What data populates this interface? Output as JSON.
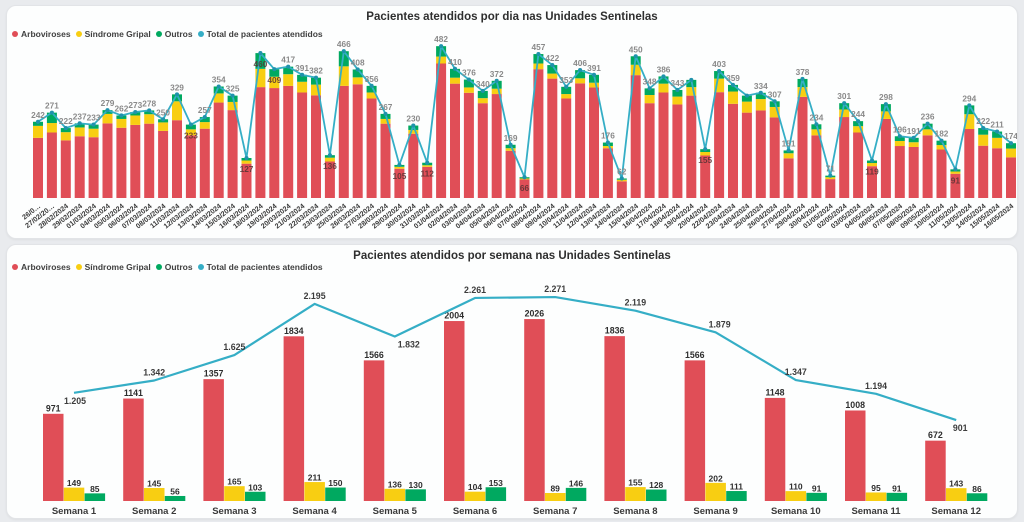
{
  "page": {
    "background": "#e9ebee",
    "card_background": "#fdfefe",
    "card_border": "#e2e4e7"
  },
  "colors": {
    "arboviroses": "#e04e57",
    "sindrome_gripal": "#f8ce12",
    "outros": "#00a960",
    "total_line": "#35aec6",
    "line_dot": "#1f93ac",
    "label_gray": "#8a8a8a",
    "label_inside_dark": "#553333",
    "label_black": "#2e2e2e",
    "axis_text": "#3a3a3a",
    "title_text": "#2f2f2f",
    "legend_text": "#404040"
  },
  "daily_chart": {
    "title": "Pacientes atendidos por dia nas Unidades Sentinelas",
    "legend": [
      {
        "label": "Arboviroses",
        "color": "#e04e57"
      },
      {
        "label": "Síndrome Gripal",
        "color": "#f8ce12"
      },
      {
        "label": "Outros",
        "color": "#00a960"
      },
      {
        "label": "Total de pacientes atendidos",
        "color": "#35aec6"
      }
    ]
  },
  "weekly_chart": {
    "title": "Pacientes atendidos por semana nas Unidades Sentinelas",
    "legend": [
      {
        "label": "Arboviroses",
        "color": "#e04e57"
      },
      {
        "label": "Síndrome Gripal",
        "color": "#f8ce12"
      },
      {
        "label": "Outros",
        "color": "#00a960"
      },
      {
        "label": "Total de pacientes atendidos",
        "color": "#35aec6"
      }
    ]
  },
  "chart_data": [
    {
      "id": "daily",
      "type": "bar",
      "subtype": "stacked-columns-with-line",
      "title": "Pacientes atendidos por dia nas Unidades Sentinelas",
      "categories": [
        "26/02/2024",
        "27/02/2024",
        "28/02/2024",
        "29/02/2024",
        "01/03/2024",
        "04/03/2024",
        "05/03/2024",
        "06/03/2024",
        "07/03/2024",
        "08/03/2024",
        "11/03/2024",
        "12/03/2024",
        "13/03/2024",
        "14/03/2024",
        "15/03/2024",
        "16/03/2024",
        "18/03/2024",
        "19/03/2024",
        "20/03/2024",
        "21/03/2024",
        "22/03/2024",
        "23/03/2024",
        "25/03/2024",
        "26/03/2024",
        "27/03/2024",
        "28/03/2024",
        "29/03/2024",
        "30/03/2024",
        "31/03/2024",
        "01/04/2024",
        "02/04/2024",
        "03/04/2024",
        "04/04/2024",
        "05/04/2024",
        "06/04/2024",
        "07/04/2024",
        "08/04/2024",
        "09/04/2024",
        "10/04/2024",
        "11/04/2024",
        "12/04/2024",
        "13/04/2024",
        "14/04/2024",
        "15/04/2024",
        "16/04/2024",
        "17/04/2024",
        "18/04/2024",
        "19/04/2024",
        "20/04/2024",
        "22/04/2024",
        "23/04/2024",
        "24/04/2024",
        "25/04/2024",
        "26/04/2024",
        "27/04/2024",
        "29/04/2024",
        "30/04/2024",
        "01/05/2024",
        "02/05/2024",
        "03/05/2024",
        "04/05/2024",
        "06/05/2024",
        "07/05/2024",
        "08/05/2024",
        "09/05/2024",
        "10/05/2024",
        "11/05/2024",
        "13/05/2024",
        "14/05/2024",
        "15/05/2024",
        "16/05/2024"
      ],
      "tick_labels_displayed": [
        "26/0…",
        "27/02/20…",
        "28/02/2024",
        "29/02/2024",
        "01/03/2024",
        "04/03/2024",
        "05/03/2024",
        "06/03/2024",
        "07/03/2024",
        "08/03/2024",
        "11/03/2024",
        "12/03/2024",
        "13/03/2024",
        "14/03/2024",
        "15/03/2024",
        "16/03/2024",
        "18/03/2024",
        "19/03/2024",
        "20/03/2024",
        "21/03/2024",
        "22/03/2024",
        "23/03/2024",
        "25/03/2024",
        "26/03/2024",
        "27/03/2024",
        "28/03/2024",
        "29/03/2024",
        "30/03/2024",
        "31/03/2024",
        "01/04/2024",
        "02/04/2024",
        "03/04/2024",
        "04/04/2024",
        "05/04/2024",
        "06/04/2024",
        "07/04/2024",
        "08/04/2024",
        "09/04/2024",
        "10/04/2024",
        "11/04/2024",
        "12/04/2024",
        "13/04/2024",
        "14/04/2024",
        "15/04/2024",
        "16/04/2024",
        "17/04/2024",
        "18/04/2024",
        "19/04/2024",
        "20/04/2024",
        "22/04/2024",
        "23/04/2024",
        "24/04/2024",
        "25/04/2024",
        "26/04/2024",
        "27/04/2024",
        "29/04/2024",
        "30/04/2024",
        "01/05/2024",
        "02/05/2024",
        "03/05/2024",
        "04/05/2024",
        "06/05/2024",
        "07/05/2024",
        "08/05/2024",
        "09/05/2024",
        "10/05/2024",
        "11/05/2024",
        "13/05/2024",
        "14/05/2024",
        "15/05/2024",
        "16/05/2024"
      ],
      "series": [
        {
          "name": "Arboviroses",
          "type": "bar",
          "color": "#e04e57",
          "values": [
            191,
            208,
            183,
            196,
            193,
            237,
            223,
            232,
            236,
            213,
            247,
            199,
            220,
            303,
            279,
            109,
            352,
            349,
            356,
            335,
            326,
            116,
            356,
            361,
            316,
            236,
            93,
            204,
            99,
            427,
            363,
            334,
            301,
            330,
            150,
            59,
            409,
            379,
            316,
            364,
            351,
            158,
            53,
            390,
            301,
            335,
            297,
            325,
            135,
            336,
            299,
            271,
            278,
            256,
            126,
            321,
            199,
            60,
            257,
            208,
            101,
            251,
            165,
            162,
            199,
            154,
            77,
            219,
            166,
            158,
            129
          ]
        },
        {
          "name": "Síndrome Gripal",
          "type": "bar",
          "color": "#f8ce12",
          "values": [
            38,
            30,
            26,
            28,
            27,
            30,
            28,
            30,
            30,
            27,
            60,
            19,
            21,
            29,
            26,
            10,
            58,
            36,
            37,
            34,
            34,
            12,
            62,
            22,
            19,
            15,
            6,
            12,
            5,
            22,
            19,
            17,
            16,
            17,
            8,
            3,
            18,
            16,
            14,
            16,
            15,
            7,
            5,
            33,
            26,
            28,
            25,
            27,
            11,
            43,
            39,
            35,
            36,
            33,
            16,
            31,
            19,
            6,
            24,
            20,
            10,
            24,
            16,
            15,
            19,
            14,
            7,
            47,
            35,
            33,
            28
          ]
        },
        {
          "name": "Outros",
          "type": "bar",
          "color": "#00a960",
          "values": [
            13,
            33,
            13,
            13,
            13,
            12,
            11,
            11,
            12,
            10,
            22,
            15,
            16,
            22,
            20,
            8,
            50,
            24,
            24,
            22,
            22,
            8,
            48,
            25,
            21,
            16,
            6,
            14,
            8,
            33,
            28,
            25,
            23,
            25,
            11,
            4,
            30,
            27,
            23,
            26,
            25,
            11,
            4,
            27,
            21,
            23,
            21,
            23,
            9,
            24,
            21,
            19,
            20,
            18,
            9,
            26,
            16,
            5,
            20,
            16,
            8,
            23,
            15,
            14,
            18,
            14,
            7,
            28,
            21,
            20,
            17
          ]
        },
        {
          "name": "Total de pacientes atendidos",
          "type": "line",
          "color": "#35aec6",
          "values": [
            242,
            271,
            222,
            237,
            233,
            279,
            262,
            273,
            278,
            250,
            329,
            233,
            257,
            354,
            325,
            127,
            460,
            409,
            417,
            391,
            382,
            136,
            466,
            408,
            356,
            267,
            105,
            230,
            112,
            482,
            410,
            376,
            340,
            372,
            169,
            66,
            457,
            422,
            353,
            406,
            391,
            176,
            62,
            450,
            348,
            386,
            343,
            375,
            155,
            403,
            359,
            325,
            334,
            307,
            151,
            378,
            234,
            71,
            301,
            244,
            119,
            298,
            196,
            191,
            236,
            182,
            91,
            294,
            222,
            211,
            174
          ]
        }
      ],
      "total_labels": [
        "242",
        "271",
        "222",
        "237",
        "233",
        "279",
        "262",
        "273",
        "278",
        "250",
        "329",
        "233",
        "257",
        "354",
        "325",
        "127",
        "460",
        "409",
        "417",
        "391",
        "382",
        "136",
        "466",
        "408",
        "356",
        "267",
        "105",
        "230",
        "112",
        "482",
        "410",
        "376",
        "340",
        "372",
        "169",
        "66",
        "457",
        "422",
        "353",
        "406",
        "391",
        "176",
        "62",
        "450",
        "348",
        "386",
        "343",
        "375",
        "155",
        "403",
        "359",
        "325",
        "334",
        "307",
        "151",
        "378",
        "234",
        "71",
        "301",
        "244",
        "119",
        "298",
        "196",
        "191",
        "236",
        "182",
        "91",
        "294",
        "222",
        "211",
        "174"
      ],
      "total_label_position": [
        "above",
        "above",
        "above",
        "above",
        "above",
        "above",
        "above",
        "above",
        "above",
        "above",
        "above",
        "inside",
        "above",
        "above",
        "above",
        "inside",
        "inside",
        "inside",
        "above",
        "above",
        "above",
        "inside",
        "above",
        "above",
        "above",
        "above",
        "inside",
        "above",
        "inside",
        "above",
        "above",
        "above",
        "above",
        "above",
        "above",
        "inside",
        "above",
        "above",
        "above",
        "above",
        "above",
        "above",
        "above",
        "above",
        "above",
        "above",
        "above",
        "hidden",
        "inside",
        "above",
        "above",
        "hidden",
        "above",
        "above",
        "above",
        "above",
        "above",
        "above",
        "above",
        "above",
        "inside",
        "above",
        "above",
        "above",
        "above",
        "above",
        "inside",
        "above",
        "above",
        "above",
        "above"
      ],
      "xlabel": "",
      "ylabel": "",
      "ylim": [
        0,
        510
      ],
      "grid": false,
      "legend_position": "top-left"
    },
    {
      "id": "weekly",
      "type": "bar",
      "subtype": "clustered-columns-with-line",
      "title": "Pacientes atendidos por semana nas Unidades Sentinelas",
      "categories": [
        "Semana 1",
        "Semana 2",
        "Semana 3",
        "Semana 4",
        "Semana 5",
        "Semana 6",
        "Semana 7",
        "Semana 8",
        "Semana 9",
        "Semana 10",
        "Semana 11",
        "Semana 12"
      ],
      "series": [
        {
          "name": "Arboviroses",
          "type": "bar",
          "color": "#e04e57",
          "values": [
            971,
            1141,
            1357,
            1834,
            1566,
            2004,
            2026,
            1836,
            1566,
            1148,
            1008,
            672
          ]
        },
        {
          "name": "Síndrome Gripal",
          "type": "bar",
          "color": "#f8ce12",
          "values": [
            149,
            145,
            165,
            211,
            136,
            104,
            89,
            155,
            202,
            110,
            95,
            143
          ]
        },
        {
          "name": "Outros",
          "type": "bar",
          "color": "#00a960",
          "values": [
            85,
            56,
            103,
            150,
            130,
            153,
            146,
            128,
            111,
            91,
            91,
            86
          ]
        },
        {
          "name": "Total de pacientes atendidos",
          "type": "line",
          "color": "#35aec6",
          "values": [
            1205,
            1342,
            1625,
            2195,
            1832,
            2261,
            2271,
            2119,
            1879,
            1347,
            1194,
            901
          ],
          "labels": [
            "1.205",
            "1.342",
            "1.625",
            "2.195",
            "1.832",
            "2.261",
            "2.271",
            "2.119",
            "1.879",
            "1.347",
            "1.194",
            "901"
          ]
        }
      ],
      "xlabel": "",
      "ylabel": "",
      "ylim": [
        0,
        2400
      ],
      "grid": false,
      "legend_position": "top-left"
    }
  ]
}
